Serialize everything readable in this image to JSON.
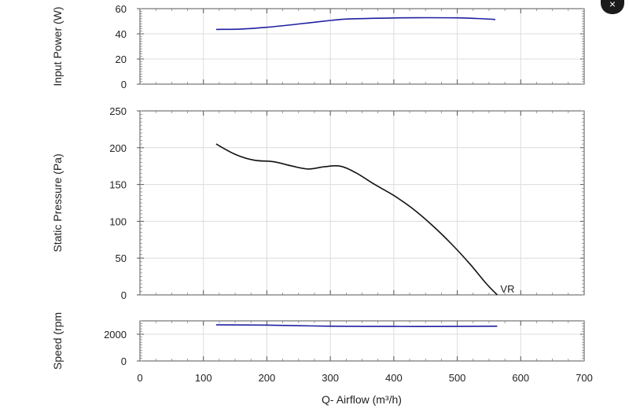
{
  "chart_data": {
    "type": "line",
    "xlabel": "Q- Airflow (m³/h)",
    "xlim": [
      0,
      700
    ],
    "x_ticks": [
      "0",
      "100",
      "200",
      "300",
      "400",
      "500",
      "600",
      "700"
    ],
    "grid": true,
    "panels": [
      {
        "id": "power",
        "ylabel": "Input Power (W)",
        "ylim": [
          0,
          60
        ],
        "y_ticks": [
          "0",
          "20",
          "40",
          "60"
        ],
        "color": "#1f1fa0",
        "series": [
          {
            "x": [
              120,
              160,
              200,
              250,
              300,
              330,
              400,
              450,
              500,
              530,
              560
            ],
            "y": [
              43.5,
              43.8,
              45.2,
              47.8,
              50.6,
              51.8,
              52.6,
              52.8,
              52.7,
              52.2,
              51.4
            ]
          }
        ]
      },
      {
        "id": "pressure",
        "ylabel": "Static Pressure (Pa)",
        "ylim": [
          0,
          250
        ],
        "y_ticks": [
          "0",
          "50",
          "100",
          "150",
          "200",
          "250"
        ],
        "color": "#111111",
        "series": [
          {
            "name": "VR",
            "x": [
              120,
              150,
              180,
              210,
              240,
              265,
              290,
              315,
              340,
              370,
              400,
              430,
              460,
              490,
              520,
              545,
              563
            ],
            "y": [
              205,
              191,
              183,
              181,
              175,
              171,
              174,
              175,
              166,
              150,
              135,
              117,
              95,
              70,
              42,
              16,
              0
            ]
          }
        ]
      },
      {
        "id": "speed",
        "ylabel": "Speed (rpm",
        "ylim": [
          0,
          3000
        ],
        "y_ticks": [
          "0",
          "2000"
        ],
        "color": "#1f1fa0",
        "series": [
          {
            "x": [
              120,
              200,
              300,
              400,
              500,
              563
            ],
            "y": [
              2700,
              2680,
              2600,
              2580,
              2580,
              2600
            ]
          }
        ]
      }
    ]
  },
  "close_button": {
    "glyph": "×"
  }
}
